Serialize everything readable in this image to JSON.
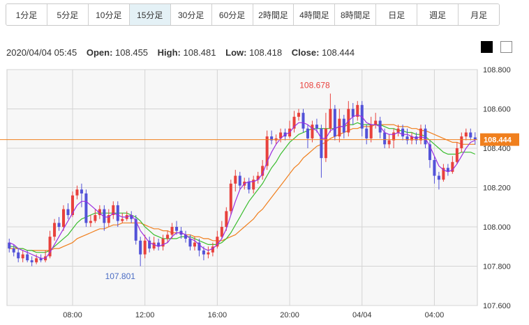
{
  "timeframe_tabs": [
    {
      "label": "1分足",
      "active": false
    },
    {
      "label": "5分足",
      "active": false
    },
    {
      "label": "10分足",
      "active": false
    },
    {
      "label": "15分足",
      "active": true
    },
    {
      "label": "30分足",
      "active": false
    },
    {
      "label": "60分足",
      "active": false
    },
    {
      "label": "2時間足",
      "active": false
    },
    {
      "label": "4時間足",
      "active": false
    },
    {
      "label": "8時間足",
      "active": false
    },
    {
      "label": "日足",
      "active": false
    },
    {
      "label": "週足",
      "active": false
    },
    {
      "label": "月足",
      "active": false
    }
  ],
  "ohlc": {
    "datetime": "2020/04/04 05:45",
    "open_label": "Open:",
    "open": "108.455",
    "high_label": "High:",
    "high": "108.481",
    "low_label": "Low:",
    "low": "108.418",
    "close_label": "Close:",
    "close": "108.444"
  },
  "colors": {
    "up": "#e8413c",
    "down": "#5252d8",
    "ma_short": "#9a2ee0",
    "ma_mid": "#3bbd2f",
    "ma_long": "#f07f1d",
    "current_price": "#f07f1d",
    "high_annotation": "#e8413c",
    "low_annotation": "#4a6cc4"
  },
  "chart_data": {
    "type": "candlestick",
    "ylim": [
      107.6,
      108.8
    ],
    "y_ticks": [
      "108.800",
      "108.600",
      "108.400",
      "108.200",
      "108.000",
      "107.800",
      "107.600"
    ],
    "x_ticks": [
      {
        "index": 14,
        "label": "08:00"
      },
      {
        "index": 30,
        "label": "12:00"
      },
      {
        "index": 46,
        "label": "16:00"
      },
      {
        "index": 62,
        "label": "20:00"
      },
      {
        "index": 78,
        "label": "04/04"
      },
      {
        "index": 94,
        "label": "04:00"
      }
    ],
    "grid": true,
    "current_price": 108.444,
    "current_price_label": "108.444",
    "annotations": [
      {
        "index": 68,
        "value": 108.678,
        "label": "108.678",
        "position": "above"
      },
      {
        "index": 25,
        "value": 107.801,
        "label": "107.801",
        "position": "below"
      }
    ],
    "candles": [
      [
        107.92,
        107.89,
        107.94,
        107.87
      ],
      [
        107.89,
        107.87,
        107.91,
        107.85
      ],
      [
        107.87,
        107.84,
        107.89,
        107.82
      ],
      [
        107.84,
        107.86,
        107.88,
        107.82
      ],
      [
        107.86,
        107.83,
        107.88,
        107.82
      ],
      [
        107.83,
        107.82,
        107.85,
        107.8
      ],
      [
        107.82,
        107.84,
        107.86,
        107.81
      ],
      [
        107.84,
        107.83,
        107.86,
        107.82
      ],
      [
        107.83,
        107.85,
        107.88,
        107.82
      ],
      [
        107.85,
        107.95,
        107.98,
        107.84
      ],
      [
        107.95,
        108.02,
        108.04,
        107.93
      ],
      [
        108.02,
        108.0,
        108.05,
        107.98
      ],
      [
        108.0,
        108.09,
        108.11,
        107.98
      ],
      [
        108.09,
        108.06,
        108.12,
        108.04
      ],
      [
        108.06,
        108.16,
        108.18,
        108.05
      ],
      [
        108.16,
        108.19,
        108.21,
        108.14
      ],
      [
        108.19,
        108.17,
        108.22,
        108.1
      ],
      [
        108.17,
        108.02,
        108.19,
        108.0
      ],
      [
        108.02,
        108.03,
        108.06,
        108.0
      ],
      [
        108.03,
        108.06,
        108.09,
        108.02
      ],
      [
        108.06,
        108.09,
        108.11,
        108.04
      ],
      [
        108.09,
        108.02,
        108.11,
        107.98
      ],
      [
        108.02,
        108.06,
        108.09,
        108.0
      ],
      [
        108.06,
        108.11,
        108.13,
        108.04
      ],
      [
        108.11,
        108.03,
        108.13,
        108.0
      ],
      [
        108.03,
        108.04,
        108.07,
        108.02
      ],
      [
        108.04,
        108.06,
        108.08,
        108.03
      ],
      [
        108.06,
        108.04,
        108.08,
        108.02
      ],
      [
        108.04,
        107.93,
        108.06,
        107.91
      ],
      [
        107.93,
        107.86,
        107.95,
        107.8
      ],
      [
        107.86,
        107.93,
        107.96,
        107.84
      ],
      [
        107.93,
        107.89,
        107.95,
        107.87
      ],
      [
        107.89,
        107.92,
        107.95,
        107.88
      ],
      [
        107.92,
        107.9,
        107.94,
        107.88
      ],
      [
        107.9,
        107.94,
        107.96,
        107.88
      ],
      [
        107.94,
        107.96,
        107.98,
        107.92
      ],
      [
        107.96,
        108.0,
        108.02,
        107.94
      ],
      [
        108.0,
        107.98,
        108.03,
        107.96
      ],
      [
        107.98,
        107.96,
        108.0,
        107.94
      ],
      [
        107.96,
        107.94,
        107.98,
        107.92
      ],
      [
        107.94,
        107.9,
        107.96,
        107.88
      ],
      [
        107.9,
        107.92,
        107.95,
        107.88
      ],
      [
        107.92,
        107.88,
        107.94,
        107.85
      ],
      [
        107.88,
        107.86,
        107.9,
        107.83
      ],
      [
        107.86,
        107.87,
        107.9,
        107.84
      ],
      [
        107.87,
        107.9,
        107.92,
        107.85
      ],
      [
        107.9,
        107.95,
        107.98,
        107.89
      ],
      [
        107.95,
        108.0,
        108.03,
        107.94
      ],
      [
        108.0,
        108.08,
        108.1,
        107.98
      ],
      [
        108.08,
        108.22,
        108.24,
        108.06
      ],
      [
        108.22,
        108.26,
        108.29,
        108.18
      ],
      [
        108.26,
        108.21,
        108.28,
        108.19
      ],
      [
        108.21,
        108.23,
        108.25,
        108.19
      ],
      [
        108.23,
        108.19,
        108.25,
        108.17
      ],
      [
        108.19,
        108.24,
        108.26,
        108.17
      ],
      [
        108.24,
        108.26,
        108.28,
        108.22
      ],
      [
        108.26,
        108.31,
        108.34,
        108.24
      ],
      [
        108.31,
        108.46,
        108.49,
        108.29
      ],
      [
        108.46,
        108.44,
        108.49,
        108.42
      ],
      [
        108.44,
        108.45,
        108.47,
        108.42
      ],
      [
        108.45,
        108.48,
        108.5,
        108.43
      ],
      [
        108.48,
        108.46,
        108.5,
        108.44
      ],
      [
        108.46,
        108.5,
        108.54,
        108.45
      ],
      [
        108.5,
        108.56,
        108.59,
        108.48
      ],
      [
        108.56,
        108.58,
        108.6,
        108.54
      ],
      [
        108.58,
        108.5,
        108.6,
        108.48
      ],
      [
        108.5,
        108.45,
        108.52,
        108.4
      ],
      [
        108.45,
        108.52,
        108.54,
        108.43
      ],
      [
        108.52,
        108.5,
        108.55,
        108.48
      ],
      [
        108.5,
        108.35,
        108.52,
        108.25
      ],
      [
        108.35,
        108.5,
        108.58,
        108.33
      ],
      [
        108.5,
        108.6,
        108.678,
        108.48
      ],
      [
        108.6,
        108.46,
        108.62,
        108.44
      ],
      [
        108.46,
        108.55,
        108.6,
        108.43
      ],
      [
        108.55,
        108.48,
        108.57,
        108.45
      ],
      [
        108.48,
        108.6,
        108.64,
        108.46
      ],
      [
        108.6,
        108.56,
        108.63,
        108.52
      ],
      [
        108.56,
        108.62,
        108.64,
        108.54
      ],
      [
        108.62,
        108.5,
        108.64,
        108.46
      ],
      [
        108.5,
        108.45,
        108.52,
        108.42
      ],
      [
        108.45,
        108.52,
        108.56,
        108.43
      ],
      [
        108.52,
        108.54,
        108.58,
        108.5
      ],
      [
        108.54,
        108.48,
        108.56,
        108.45
      ],
      [
        108.48,
        108.42,
        108.5,
        108.4
      ],
      [
        108.42,
        108.44,
        108.47,
        108.4
      ],
      [
        108.44,
        108.48,
        108.5,
        108.4
      ],
      [
        108.48,
        108.5,
        108.52,
        108.46
      ],
      [
        108.5,
        108.46,
        108.52,
        108.44
      ],
      [
        108.46,
        108.44,
        108.5,
        108.42
      ],
      [
        108.44,
        108.46,
        108.48,
        108.42
      ],
      [
        108.46,
        108.44,
        108.48,
        108.42
      ],
      [
        108.44,
        108.5,
        108.52,
        108.42
      ],
      [
        108.5,
        108.42,
        108.52,
        108.4
      ],
      [
        108.42,
        108.34,
        108.44,
        108.3
      ],
      [
        108.34,
        108.26,
        108.36,
        108.22
      ],
      [
        108.26,
        108.24,
        108.28,
        108.19
      ],
      [
        108.24,
        108.3,
        108.32,
        108.23
      ],
      [
        108.3,
        108.28,
        108.32,
        108.26
      ],
      [
        108.28,
        108.33,
        108.36,
        108.27
      ],
      [
        108.33,
        108.4,
        108.43,
        108.32
      ],
      [
        108.4,
        108.46,
        108.48,
        108.38
      ],
      [
        108.46,
        108.48,
        108.5,
        108.44
      ],
      [
        108.48,
        108.455,
        108.5,
        108.44
      ],
      [
        108.455,
        108.444,
        108.481,
        108.418
      ]
    ],
    "ma_short": [
      107.92,
      107.91,
      107.89,
      107.88,
      107.87,
      107.86,
      107.85,
      107.84,
      107.84,
      107.87,
      107.91,
      107.95,
      107.99,
      108.03,
      108.07,
      108.11,
      108.13,
      108.13,
      108.11,
      108.09,
      108.07,
      108.05,
      108.05,
      108.07,
      108.06,
      108.05,
      108.05,
      108.06,
      108.03,
      107.98,
      107.95,
      107.92,
      107.91,
      107.9,
      107.91,
      107.92,
      107.95,
      107.97,
      107.97,
      107.96,
      107.94,
      107.93,
      107.91,
      107.89,
      107.88,
      107.89,
      107.91,
      107.94,
      107.99,
      108.06,
      108.13,
      108.19,
      108.22,
      108.23,
      108.23,
      108.24,
      108.27,
      108.33,
      108.38,
      108.42,
      108.45,
      108.47,
      108.48,
      108.51,
      108.53,
      108.53,
      108.52,
      108.5,
      108.49,
      108.45,
      108.45,
      108.49,
      108.5,
      108.51,
      108.51,
      108.54,
      108.56,
      108.57,
      108.56,
      108.53,
      108.52,
      108.52,
      108.51,
      108.48,
      108.47,
      108.47,
      108.48,
      108.47,
      108.47,
      108.46,
      108.45,
      108.46,
      108.45,
      108.41,
      108.36,
      108.31,
      108.29,
      108.28,
      108.29,
      108.32,
      108.36,
      108.4,
      108.43,
      108.44
    ],
    "ma_mid": [
      107.9,
      107.9,
      107.89,
      107.89,
      107.88,
      107.88,
      107.87,
      107.87,
      107.87,
      107.88,
      107.9,
      107.92,
      107.94,
      107.96,
      107.99,
      108.02,
      108.04,
      108.05,
      108.06,
      108.07,
      108.07,
      108.07,
      108.07,
      108.07,
      108.07,
      108.07,
      108.07,
      108.06,
      108.05,
      108.03,
      108.0,
      107.98,
      107.96,
      107.95,
      107.94,
      107.94,
      107.94,
      107.94,
      107.95,
      107.95,
      107.95,
      107.94,
      107.93,
      107.92,
      107.91,
      107.91,
      107.91,
      107.92,
      107.94,
      107.97,
      108.01,
      108.05,
      108.09,
      108.13,
      108.16,
      108.19,
      108.22,
      108.26,
      108.3,
      108.33,
      108.37,
      108.4,
      108.43,
      108.45,
      108.47,
      108.48,
      108.49,
      108.5,
      108.5,
      108.5,
      108.5,
      108.5,
      108.5,
      108.51,
      108.51,
      108.52,
      108.52,
      108.53,
      108.52,
      108.52,
      108.52,
      108.52,
      108.52,
      108.51,
      108.5,
      108.5,
      108.49,
      108.49,
      108.48,
      108.48,
      108.47,
      108.47,
      108.46,
      108.44,
      108.42,
      108.4,
      108.38,
      108.37,
      108.37,
      108.37,
      108.38,
      108.38,
      108.38,
      108.37
    ],
    "ma_long": [
      107.89,
      107.89,
      107.89,
      107.89,
      107.88,
      107.88,
      107.88,
      107.88,
      107.88,
      107.88,
      107.89,
      107.89,
      107.9,
      107.91,
      107.92,
      107.94,
      107.95,
      107.96,
      107.97,
      107.98,
      107.99,
      107.99,
      108.0,
      108.01,
      108.01,
      108.02,
      108.02,
      108.02,
      108.02,
      108.02,
      108.01,
      108.0,
      107.99,
      107.99,
      107.98,
      107.98,
      107.97,
      107.97,
      107.97,
      107.96,
      107.96,
      107.95,
      107.95,
      107.94,
      107.94,
      107.93,
      107.93,
      107.93,
      107.94,
      107.95,
      107.96,
      107.98,
      108.0,
      108.02,
      108.04,
      108.07,
      108.09,
      108.12,
      108.15,
      108.18,
      108.21,
      108.24,
      108.27,
      108.3,
      108.32,
      108.35,
      108.37,
      108.39,
      108.41,
      108.42,
      108.43,
      108.45,
      108.46,
      108.47,
      108.48,
      108.49,
      108.5,
      108.5,
      108.51,
      108.51,
      108.51,
      108.52,
      108.52,
      108.52,
      108.52,
      108.52,
      108.51,
      108.51,
      108.51,
      108.5,
      108.5,
      108.49,
      108.49,
      108.48,
      108.47,
      108.46,
      108.45,
      108.44,
      108.43,
      108.43,
      108.42,
      108.42,
      108.42,
      108.42
    ]
  }
}
